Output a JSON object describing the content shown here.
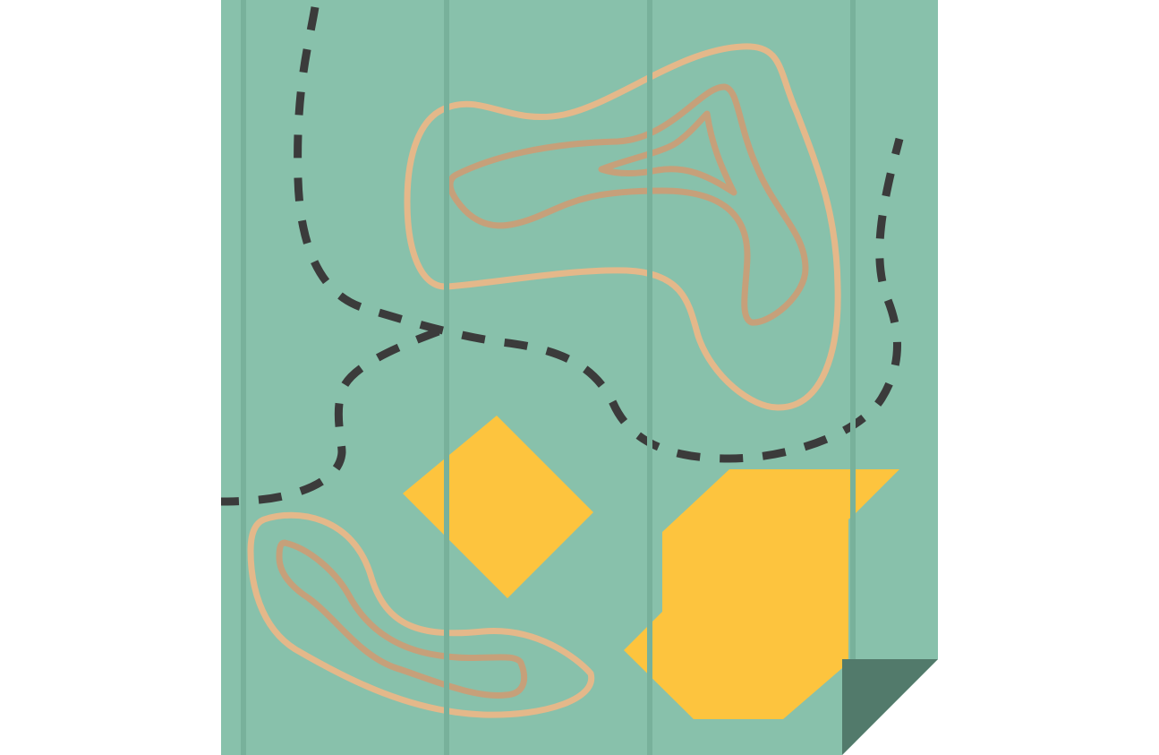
{
  "illustration": {
    "subject": "folded-map-icon",
    "colors": {
      "background": "#ffffff",
      "paper": "#88c1ab",
      "fold_line": "#78b19b",
      "folded_corner": "#527a6b",
      "contour_outer": "#e4b88a",
      "contour_inner": "#c6a07a",
      "route": "#3b3b3b",
      "region_fill": "#fdc43e"
    }
  }
}
